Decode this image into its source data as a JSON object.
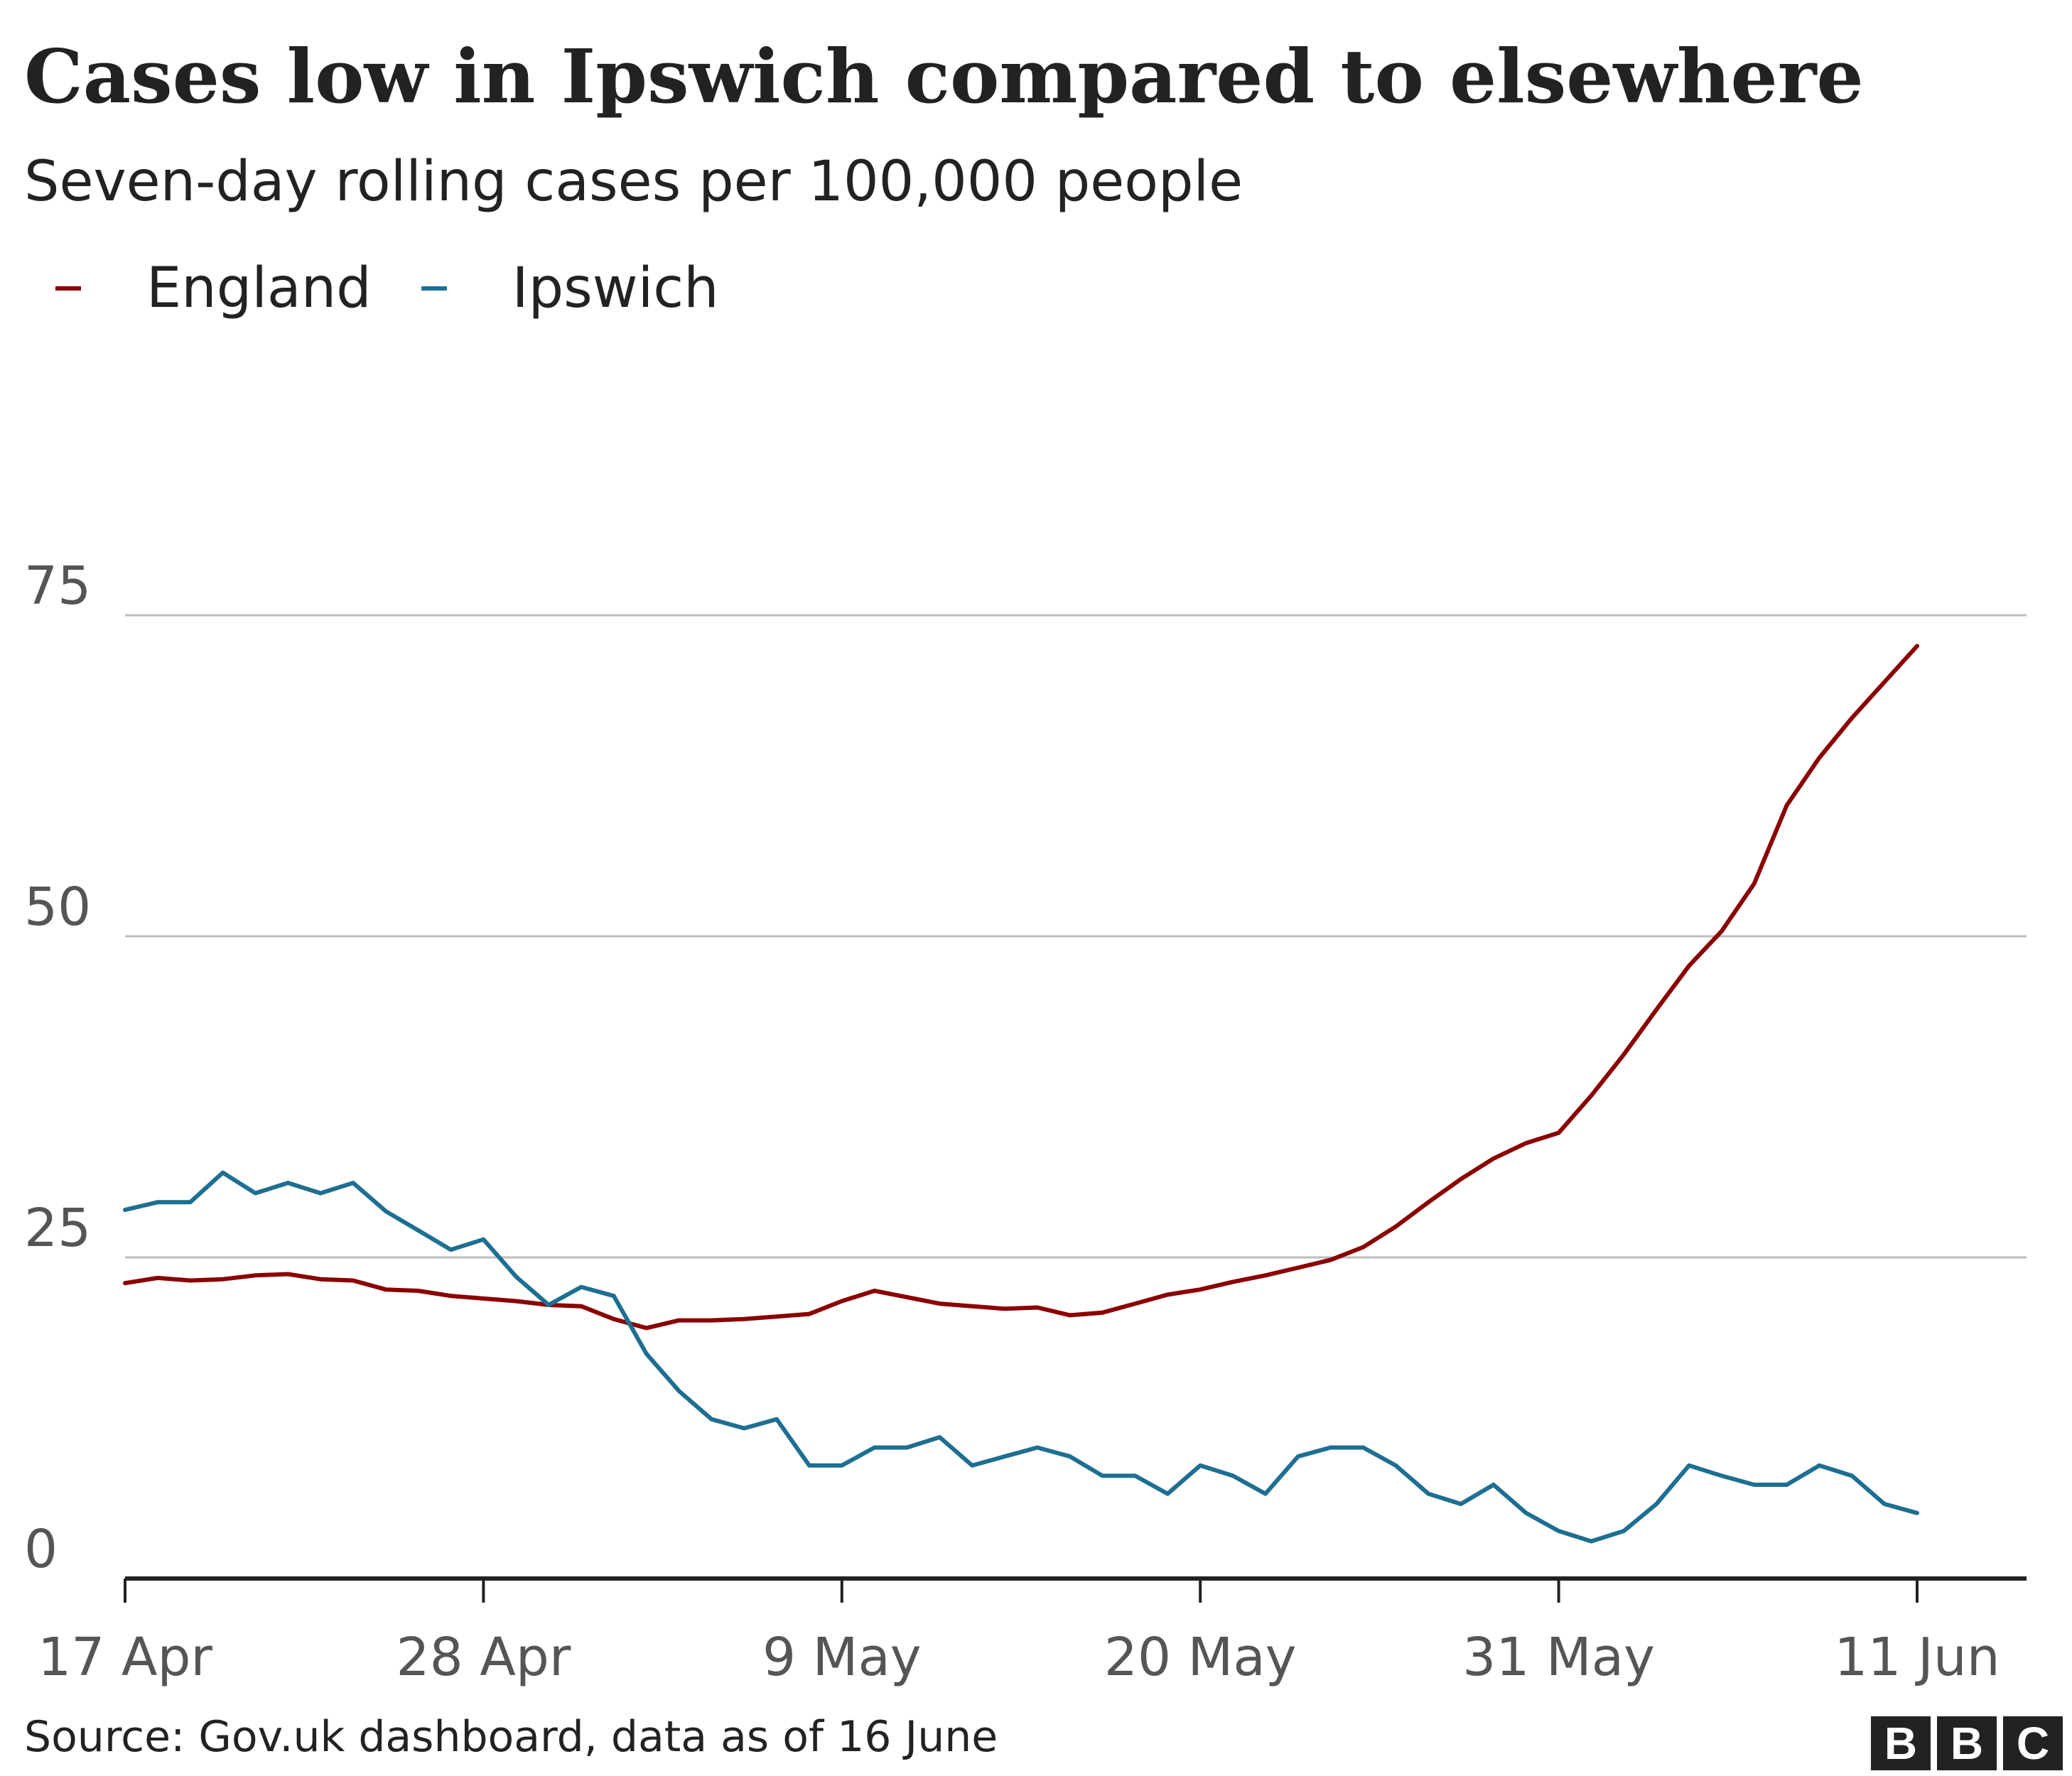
{
  "title": "Cases low in Ipswich compared to elsewhere",
  "subtitle": "Seven-day rolling cases per 100,000 people",
  "source": "Source: Gov.uk dashboard, data as of 16 June",
  "logo": [
    "B",
    "B",
    "C"
  ],
  "colors": {
    "England": "#8b0000",
    "Ipswich": "#1d6f92",
    "grid": "#bdbdbd",
    "axis": "#222222",
    "tick_text": "#555555"
  },
  "chart_data": {
    "type": "line",
    "title": "Cases low in Ipswich compared to elsewhere",
    "subtitle": "Seven-day rolling cases per 100,000 people",
    "xlabel": "",
    "ylabel": "",
    "x": [
      "17 Apr",
      "18 Apr",
      "19 Apr",
      "20 Apr",
      "21 Apr",
      "22 Apr",
      "23 Apr",
      "24 Apr",
      "25 Apr",
      "26 Apr",
      "27 Apr",
      "28 Apr",
      "29 Apr",
      "30 Apr",
      "1 May",
      "2 May",
      "3 May",
      "4 May",
      "5 May",
      "6 May",
      "7 May",
      "8 May",
      "9 May",
      "10 May",
      "11 May",
      "12 May",
      "13 May",
      "14 May",
      "15 May",
      "16 May",
      "17 May",
      "18 May",
      "19 May",
      "20 May",
      "21 May",
      "22 May",
      "23 May",
      "24 May",
      "25 May",
      "26 May",
      "27 May",
      "28 May",
      "29 May",
      "30 May",
      "31 May",
      "1 Jun",
      "2 Jun",
      "3 Jun",
      "4 Jun",
      "5 Jun",
      "6 Jun",
      "7 Jun",
      "8 Jun",
      "9 Jun",
      "10 Jun",
      "11 Jun"
    ],
    "x_ticks": [
      "17 Apr",
      "28 Apr",
      "9 May",
      "20 May",
      "31 May",
      "11 Jun"
    ],
    "ylim": [
      0,
      75
    ],
    "y_ticks": [
      0,
      25,
      50,
      75
    ],
    "grid": true,
    "legend_position": "top-left",
    "series": [
      {
        "name": "England",
        "values": [
          23.0,
          23.4,
          23.2,
          23.3,
          23.6,
          23.7,
          23.3,
          23.2,
          22.5,
          22.4,
          22.0,
          21.8,
          21.6,
          21.3,
          21.2,
          20.2,
          19.5,
          20.1,
          20.1,
          20.2,
          20.4,
          20.6,
          21.6,
          22.4,
          21.9,
          21.4,
          21.2,
          21.0,
          21.1,
          20.5,
          20.7,
          21.4,
          22.1,
          22.5,
          23.1,
          23.6,
          24.2,
          24.8,
          25.8,
          27.4,
          29.3,
          31.1,
          32.7,
          33.9,
          34.7,
          37.6,
          40.8,
          44.3,
          47.7,
          50.4,
          54.1,
          60.2,
          63.9,
          67.0,
          69.8,
          72.6
        ]
      },
      {
        "name": "Ipswich",
        "values": [
          28.7,
          29.3,
          29.3,
          31.6,
          30.0,
          30.8,
          30.0,
          30.8,
          28.6,
          27.1,
          25.6,
          26.4,
          23.5,
          21.3,
          22.7,
          22.0,
          17.5,
          14.6,
          12.4,
          11.7,
          12.4,
          8.8,
          8.8,
          10.2,
          10.2,
          11.0,
          8.8,
          9.5,
          10.2,
          9.5,
          8.0,
          8.0,
          6.6,
          8.8,
          8.0,
          6.6,
          9.5,
          10.2,
          10.2,
          8.8,
          6.6,
          5.8,
          7.3,
          5.1,
          3.7,
          2.9,
          3.7,
          5.8,
          8.8,
          8.0,
          7.3,
          7.3,
          8.8,
          8.0,
          5.8,
          5.1
        ]
      }
    ]
  }
}
